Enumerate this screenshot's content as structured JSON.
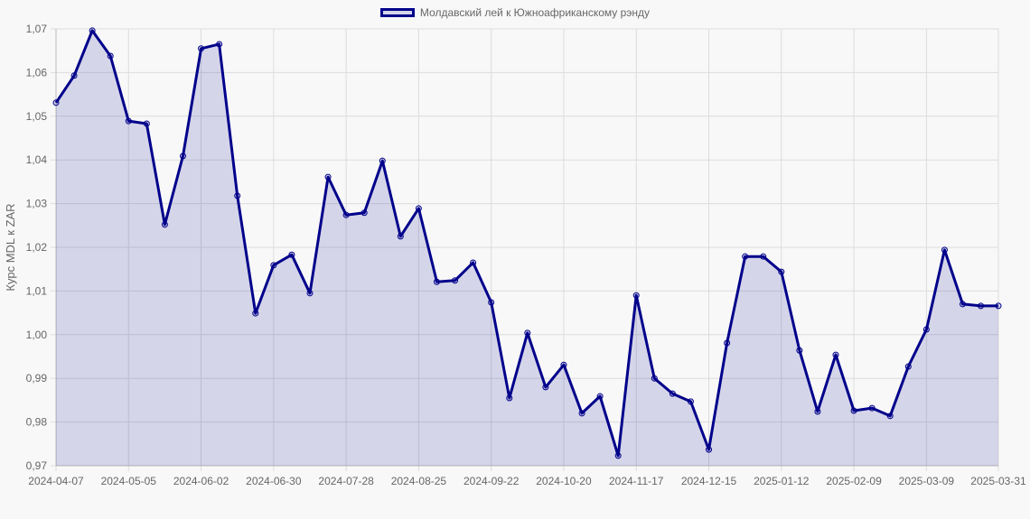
{
  "chart_data": {
    "type": "area",
    "title": "",
    "legend": {
      "position": "top",
      "entries": [
        "Молдавский лей к Южноафриканскому рэнду"
      ]
    },
    "xlabel": "",
    "ylabel": "Курс MDL к ZAR",
    "ylim": [
      0.97,
      1.07
    ],
    "grid": true,
    "y_ticks": [
      "1,07",
      "1,06",
      "1,05",
      "1,04",
      "1,03",
      "1,02",
      "1,01",
      "1,00",
      "0,99",
      "0,98",
      "0,97"
    ],
    "x_ticks": [
      "2024-04-07",
      "2024-05-05",
      "2024-06-02",
      "2024-06-30",
      "2024-07-28",
      "2024-08-25",
      "2024-09-22",
      "2024-10-20",
      "2024-11-17",
      "2024-12-15",
      "2025-01-12",
      "2025-02-09",
      "2025-03-09",
      "2025-03-31"
    ],
    "colors": {
      "line": "#00008b",
      "fill": "rgba(0,0,139,0.14)",
      "grid": "#dddddd",
      "background": "#f8f8f8"
    },
    "series": [
      {
        "name": "Молдавский лей к Южноафриканскому рэнду",
        "values": [
          1.0531,
          1.0593,
          1.0696,
          1.0638,
          1.0489,
          1.0483,
          1.0252,
          1.0409,
          1.0655,
          1.0665,
          1.0318,
          1.0049,
          1.0159,
          1.0183,
          1.0095,
          1.0361,
          1.0274,
          1.0279,
          1.0398,
          1.0225,
          1.0289,
          1.0121,
          1.0124,
          1.0165,
          1.0074,
          0.9855,
          1.0004,
          0.988,
          0.9931,
          0.982,
          0.9859,
          0.9723,
          1.009,
          0.99,
          0.9865,
          0.9847,
          0.9737,
          0.9981,
          1.0179,
          1.0179,
          1.0144,
          0.9964,
          0.9824,
          0.9954,
          0.9826,
          0.9832,
          0.9814,
          0.9927,
          1.0012,
          1.0194,
          1.007,
          1.0066,
          1.0066
        ]
      }
    ]
  }
}
